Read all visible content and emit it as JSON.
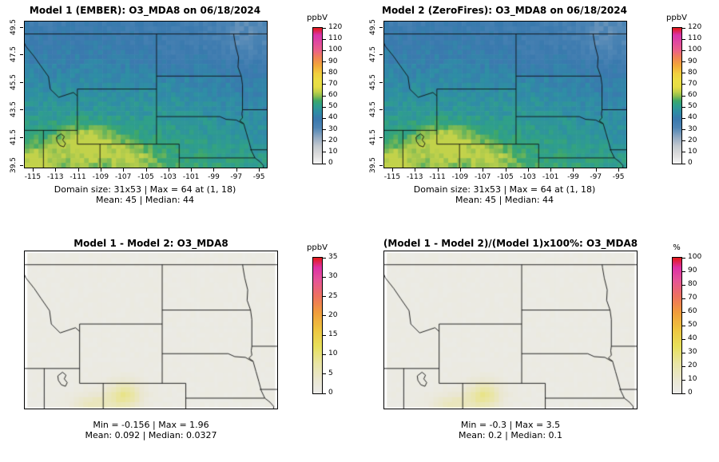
{
  "panels": [
    {
      "title": "Model 1 (EMBER): O3_MDA8 on 06/18/2024",
      "unit": "ppbV",
      "map": "o3",
      "cb_min": 0,
      "cb_max": 120,
      "cb_ticks": [
        0,
        10,
        20,
        30,
        40,
        50,
        60,
        70,
        80,
        90,
        100,
        110,
        120
      ],
      "x_ticks": [
        -115,
        -113,
        -111,
        -109,
        -107,
        -105,
        -103,
        -101,
        -99,
        -97,
        -95
      ],
      "y_ticks": [
        39.5,
        41.5,
        43.5,
        45.5,
        47.5,
        49.5
      ],
      "caption1": "Domain size: 31x53 | Max = 64 at (1, 18)",
      "caption2": "Mean: 45 | Median: 44"
    },
    {
      "title": "Model 2 (ZeroFires): O3_MDA8 on 06/18/2024",
      "unit": "ppbV",
      "map": "o3",
      "cb_min": 0,
      "cb_max": 120,
      "cb_ticks": [
        0,
        10,
        20,
        30,
        40,
        50,
        60,
        70,
        80,
        90,
        100,
        110,
        120
      ],
      "x_ticks": [
        -115,
        -113,
        -111,
        -109,
        -107,
        -105,
        -103,
        -101,
        -99,
        -97,
        -95
      ],
      "y_ticks": [
        39.5,
        41.5,
        43.5,
        45.5,
        47.5,
        49.5
      ],
      "caption1": "Domain size: 31x53 | Max = 64 at (1, 18)",
      "caption2": "Mean: 45 | Median: 44"
    },
    {
      "title": "Model 1 - Model 2: O3_MDA8",
      "unit": "ppbV",
      "map": "diff",
      "cb_min": 0,
      "cb_max": 35,
      "cb_ticks": [
        0,
        5,
        10,
        15,
        20,
        25,
        30,
        35
      ],
      "caption1": "Min = -0.156 | Max = 1.96",
      "caption2": "Mean: 0.092 | Median: 0.0327"
    },
    {
      "title": "(Model 1 - Model 2)/(Model 1)x100%: O3_MDA8",
      "unit": "%",
      "map": "pct",
      "cb_min": 0,
      "cb_max": 100,
      "cb_ticks": [
        0,
        10,
        20,
        30,
        40,
        50,
        60,
        70,
        80,
        90,
        100
      ],
      "caption1": "Min = -0.3 | Max = 3.5",
      "caption2": "Mean: 0.2 | Median: 0.1"
    }
  ],
  "chart_data": [
    {
      "type": "heatmap",
      "panel": "top_left",
      "title": "Model 1 (EMBER): O3_MDA8 on 06/18/2024",
      "variable": "O3_MDA8",
      "date": "06/18/2024",
      "units": "ppbV",
      "domain_size": "31x53",
      "max": 64,
      "max_at": "(1, 18)",
      "mean": 45,
      "median": 44,
      "colorbar": {
        "unit": "ppbV",
        "min": 0,
        "max": 120,
        "ticks": [
          0,
          10,
          20,
          30,
          40,
          50,
          60,
          70,
          80,
          90,
          100,
          110,
          120
        ]
      },
      "x_ticks": [
        -115,
        -113,
        -111,
        -109,
        -107,
        -105,
        -103,
        -101,
        -99,
        -97,
        -95
      ],
      "y_ticks": [
        39.5,
        41.5,
        43.5,
        45.5,
        47.5,
        49.5
      ],
      "xlim": [
        -115.7,
        -94.3
      ],
      "ylim": [
        39.3,
        49.9
      ],
      "legend_position": "right"
    },
    {
      "type": "heatmap",
      "panel": "top_right",
      "title": "Model 2 (ZeroFires): O3_MDA8 on 06/18/2024",
      "variable": "O3_MDA8",
      "date": "06/18/2024",
      "units": "ppbV",
      "domain_size": "31x53",
      "max": 64,
      "max_at": "(1, 18)",
      "mean": 45,
      "median": 44,
      "colorbar": {
        "unit": "ppbV",
        "min": 0,
        "max": 120,
        "ticks": [
          0,
          10,
          20,
          30,
          40,
          50,
          60,
          70,
          80,
          90,
          100,
          110,
          120
        ]
      },
      "x_ticks": [
        -115,
        -113,
        -111,
        -109,
        -107,
        -105,
        -103,
        -101,
        -99,
        -97,
        -95
      ],
      "y_ticks": [
        39.5,
        41.5,
        43.5,
        45.5,
        47.5,
        49.5
      ],
      "xlim": [
        -115.7,
        -94.3
      ],
      "ylim": [
        39.3,
        49.9
      ],
      "legend_position": "right"
    },
    {
      "type": "heatmap",
      "panel": "bottom_left",
      "title": "Model 1 - Model 2: O3_MDA8",
      "variable": "O3_MDA8",
      "units": "ppbV",
      "min": -0.156,
      "max": 1.96,
      "mean": 0.092,
      "median": 0.0327,
      "colorbar": {
        "unit": "ppbV",
        "min": 0,
        "max": 35,
        "ticks": [
          0,
          5,
          10,
          15,
          20,
          25,
          30,
          35
        ]
      },
      "xlim": [
        -115.7,
        -94.3
      ],
      "ylim": [
        39.3,
        49.9
      ],
      "legend_position": "right"
    },
    {
      "type": "heatmap",
      "panel": "bottom_right",
      "title": "(Model 1 - Model 2)/(Model 1)x100%: O3_MDA8",
      "variable": "O3_MDA8",
      "units": "%",
      "min": -0.3,
      "max": 3.5,
      "mean": 0.2,
      "median": 0.1,
      "colorbar": {
        "unit": "%",
        "min": 0,
        "max": 100,
        "ticks": [
          0,
          10,
          20,
          30,
          40,
          50,
          60,
          70,
          80,
          90,
          100
        ]
      },
      "xlim": [
        -115.7,
        -94.3
      ],
      "ylim": [
        39.3,
        49.9
      ],
      "legend_position": "right"
    }
  ],
  "colors": {
    "background": "#ffffff",
    "map_low_gray": "#ececec",
    "map_blue": "#3a79ae",
    "map_green": "#3fa868",
    "map_yellow": "#e8e046",
    "scale_top_red": "#e31a1c",
    "state_border": "#111111"
  }
}
